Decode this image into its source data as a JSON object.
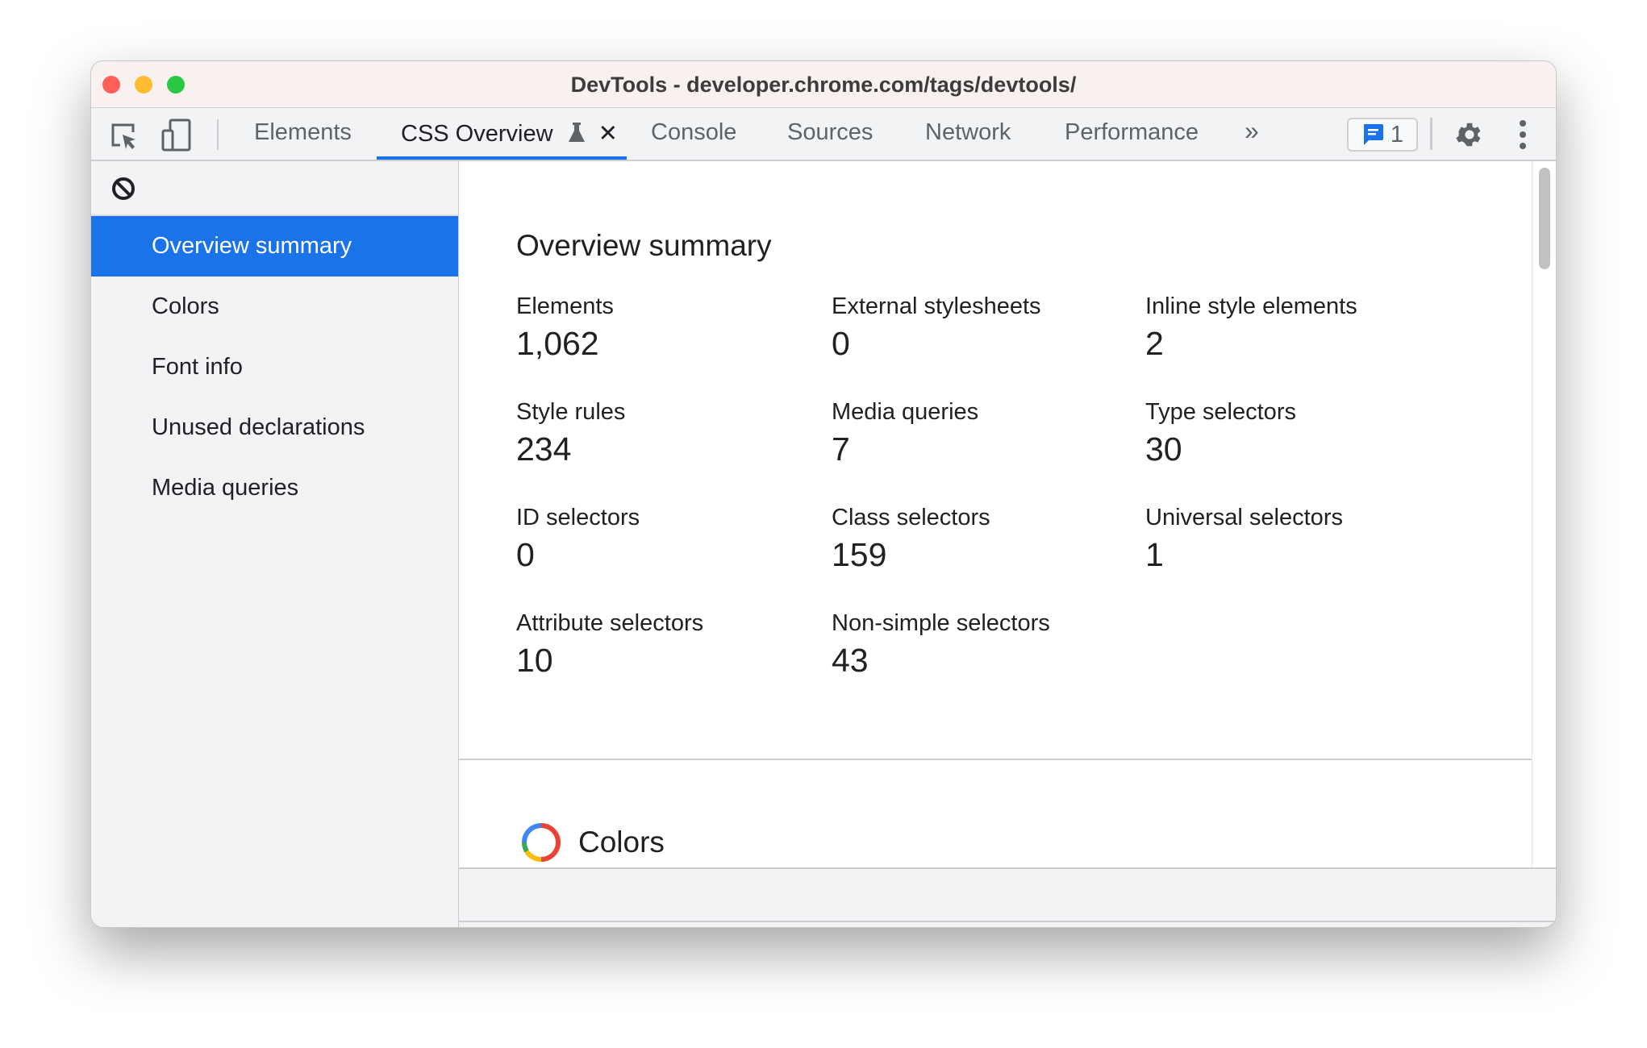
{
  "window": {
    "title": "DevTools - developer.chrome.com/tags/devtools/"
  },
  "tabs": [
    {
      "label": "Elements"
    },
    {
      "label": "CSS Overview",
      "selected": true
    },
    {
      "label": "Console"
    },
    {
      "label": "Sources"
    },
    {
      "label": "Network"
    },
    {
      "label": "Performance"
    }
  ],
  "toolbar": {
    "issues_count": "1",
    "accent": "#1a73e8"
  },
  "sidebar": {
    "items": [
      {
        "label": "Overview summary",
        "selected": true
      },
      {
        "label": "Colors"
      },
      {
        "label": "Font info"
      },
      {
        "label": "Unused declarations"
      },
      {
        "label": "Media queries"
      }
    ]
  },
  "main": {
    "heading": "Overview summary",
    "stats": [
      {
        "label": "Elements",
        "value": "1,062"
      },
      {
        "label": "External stylesheets",
        "value": "0"
      },
      {
        "label": "Inline style elements",
        "value": "2"
      },
      {
        "label": "Style rules",
        "value": "234"
      },
      {
        "label": "Media queries",
        "value": "7"
      },
      {
        "label": "Type selectors",
        "value": "30"
      },
      {
        "label": "ID selectors",
        "value": "0"
      },
      {
        "label": "Class selectors",
        "value": "159"
      },
      {
        "label": "Universal selectors",
        "value": "1"
      },
      {
        "label": "Attribute selectors",
        "value": "10"
      },
      {
        "label": "Non-simple selectors",
        "value": "43"
      }
    ],
    "colors_heading": "Colors"
  }
}
